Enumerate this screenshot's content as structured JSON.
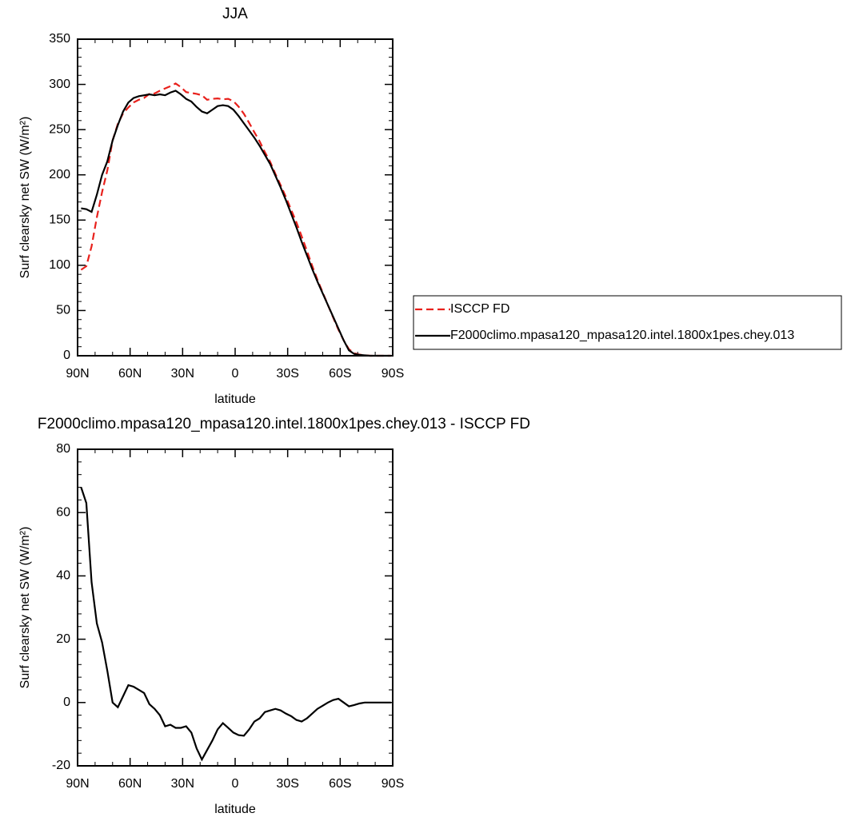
{
  "chart_data": [
    {
      "type": "line",
      "title": "JJA",
      "xlabel": "latitude",
      "ylabel": "Surf clearsky net SW (W/m²)",
      "x": [
        88,
        85,
        82,
        79,
        76,
        73,
        70,
        67,
        64,
        61,
        58,
        55,
        52,
        49,
        46,
        43,
        40,
        37,
        34,
        31,
        28,
        25,
        22,
        19,
        16,
        13,
        10,
        7,
        4,
        1,
        -2,
        -5,
        -8,
        -11,
        -14,
        -17,
        -20,
        -23,
        -26,
        -29,
        -32,
        -35,
        -38,
        -41,
        -44,
        -47,
        -50,
        -53,
        -56,
        -59,
        -62,
        -65,
        -68,
        -71,
        -74,
        -77,
        -80,
        -83,
        -86,
        -89
      ],
      "series": [
        {
          "name": "ISCCP FD",
          "color": "#e8211c",
          "dash": true,
          "values": [
            95,
            99,
            121,
            153,
            181,
            205,
            238,
            256.5,
            268,
            274.5,
            280,
            283,
            285,
            289.5,
            290,
            293,
            295.5,
            298,
            301,
            297,
            291.5,
            290.5,
            289.5,
            288,
            283,
            284,
            284.5,
            283.5,
            284,
            281.5,
            275.3,
            267.5,
            257.5,
            247,
            237,
            225,
            214.5,
            201,
            188.5,
            175.5,
            161.3,
            147.5,
            132,
            116,
            99.5,
            84,
            70,
            56,
            42.2,
            28.8,
            17,
            7.2,
            2.8,
            1.3,
            0.5,
            0,
            0,
            0,
            0,
            0
          ]
        },
        {
          "name": "F2000climo.mpasa120_mpasa120.intel.1800x1pes.chey.013",
          "color": "#000000",
          "dash": false,
          "values": [
            163,
            162,
            159,
            178,
            200,
            215,
            238,
            255,
            270,
            280,
            285,
            287,
            288,
            289,
            288,
            289,
            288,
            291,
            293,
            289,
            284,
            281,
            275,
            270,
            268,
            272,
            276,
            277,
            276,
            272,
            265,
            257,
            249,
            241,
            232,
            222,
            212,
            199,
            186,
            172,
            157,
            142,
            126,
            111,
            96,
            82,
            69,
            56,
            43,
            30,
            17,
            6,
            2,
            1,
            0.5,
            0,
            0,
            0,
            0,
            0
          ]
        }
      ],
      "xlim": [
        90,
        -90
      ],
      "xticks": [
        {
          "value": 90,
          "label": "90N"
        },
        {
          "value": 60,
          "label": "60N"
        },
        {
          "value": 30,
          "label": "30N"
        },
        0,
        {
          "value": -30,
          "label": "30S"
        },
        {
          "value": -60,
          "label": "60S"
        },
        {
          "value": -90,
          "label": "90S"
        }
      ],
      "ylim": [
        0,
        350
      ],
      "yticks": [
        0,
        50,
        100,
        150,
        200,
        250,
        300,
        350
      ],
      "legend": "outside-right"
    },
    {
      "type": "line",
      "title": "F2000climo.mpasa120_mpasa120.intel.1800x1pes.chey.013 - ISCCP FD",
      "xlabel": "latitude",
      "ylabel": "Surf clearsky net SW (W/m²)",
      "x": [
        88,
        85,
        82,
        79,
        76,
        73,
        70,
        67,
        64,
        61,
        58,
        55,
        52,
        49,
        46,
        43,
        40,
        37,
        34,
        31,
        28,
        25,
        22,
        19,
        16,
        13,
        10,
        7,
        4,
        1,
        -2,
        -5,
        -8,
        -11,
        -14,
        -17,
        -20,
        -23,
        -26,
        -29,
        -32,
        -35,
        -38,
        -41,
        -44,
        -47,
        -50,
        -53,
        -56,
        -59,
        -62,
        -65,
        -68,
        -71,
        -74,
        -77,
        -80,
        -83,
        -86,
        -89
      ],
      "series": [
        {
          "color": "#000000",
          "dash": false,
          "values": [
            68,
            63,
            38,
            25,
            19,
            10,
            0,
            -1.5,
            2,
            5.5,
            5,
            4,
            3,
            -0.5,
            -2,
            -4,
            -7.5,
            -7,
            -8,
            -8,
            -7.5,
            -9.5,
            -14.5,
            -18,
            -15,
            -12,
            -8.5,
            -6.5,
            -8,
            -9.5,
            -10.3,
            -10.5,
            -8.5,
            -6,
            -5,
            -3,
            -2.5,
            -2,
            -2.5,
            -3.5,
            -4.3,
            -5.5,
            -6,
            -5,
            -3.5,
            -2,
            -1,
            0,
            0.8,
            1.2,
            0,
            -1.2,
            -0.8,
            -0.3,
            0,
            0,
            0,
            0,
            0,
            0
          ]
        }
      ],
      "xlim": [
        90,
        -90
      ],
      "xticks": [
        {
          "value": 90,
          "label": "90N"
        },
        {
          "value": 60,
          "label": "60N"
        },
        {
          "value": 30,
          "label": "30N"
        },
        0,
        {
          "value": -30,
          "label": "30S"
        },
        {
          "value": -60,
          "label": "60S"
        },
        {
          "value": -90,
          "label": "90S"
        }
      ],
      "ylim": [
        -20,
        80
      ],
      "yticks": [
        -20,
        0,
        20,
        40,
        60,
        80
      ]
    }
  ]
}
